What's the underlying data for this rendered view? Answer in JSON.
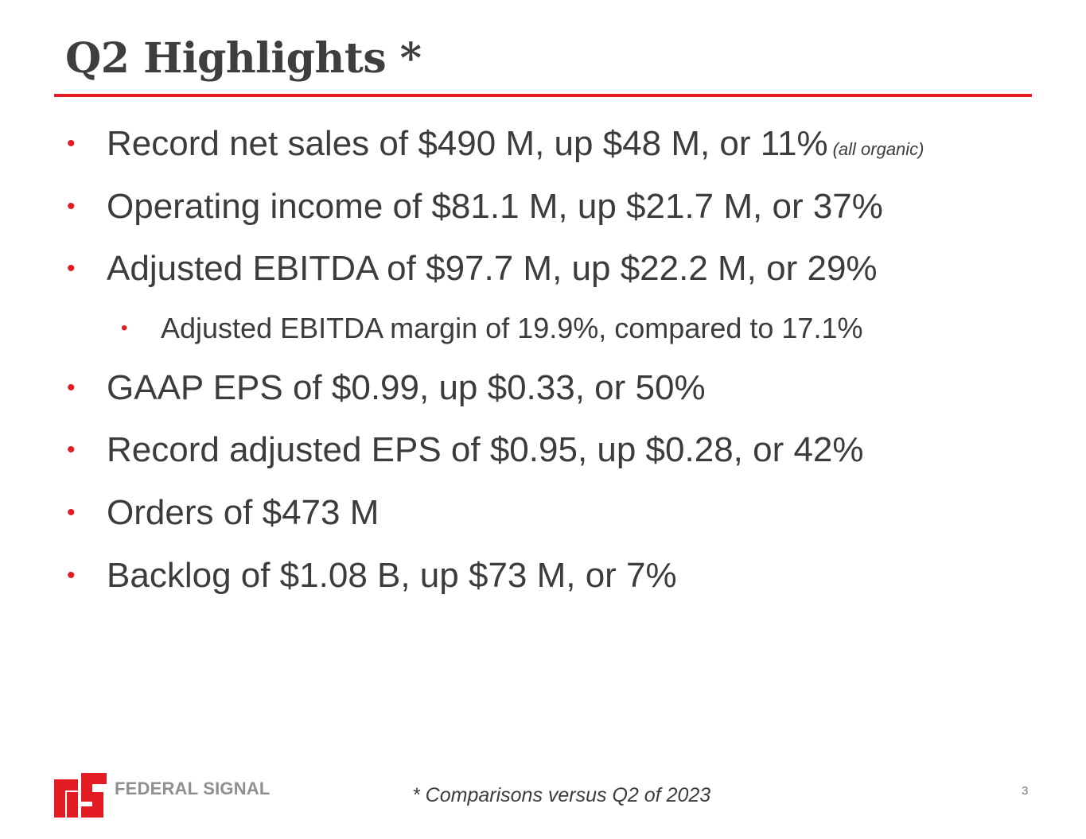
{
  "slide": {
    "title": "Q2 Highlights *",
    "bullets": [
      {
        "text": "Record net sales of $490 M, up $48 M, or 11%",
        "note": "(all organic)"
      },
      {
        "text": "Operating income of $81.1 M, up $21.7 M, or 37%"
      },
      {
        "text": "Adjusted EBITDA of $97.7 M, up $22.2 M, or 29%"
      },
      {
        "text": "Adjusted EBITDA margin of 19.9%, compared to 17.1%"
      },
      {
        "text": "GAAP EPS of $0.99, up $0.33, or 50%"
      },
      {
        "text": "Record adjusted EPS of $0.95, up $0.28, or 42%"
      },
      {
        "text": "Orders of $473 M"
      },
      {
        "text": "Backlog of $1.08 B, up $73 M, or 7%"
      }
    ],
    "bullet_glyph": "•",
    "footnote": "* Comparisons versus Q2 of 2023",
    "page_number": "3"
  },
  "logo": {
    "company_name": "FEDERAL SIGNAL",
    "mark_icon": "federal-signal-fs-logo-icon"
  },
  "colors": {
    "accent_red": "#e31b23",
    "text_dark": "#3c3c3c",
    "logo_gray": "#8f8f8f"
  }
}
